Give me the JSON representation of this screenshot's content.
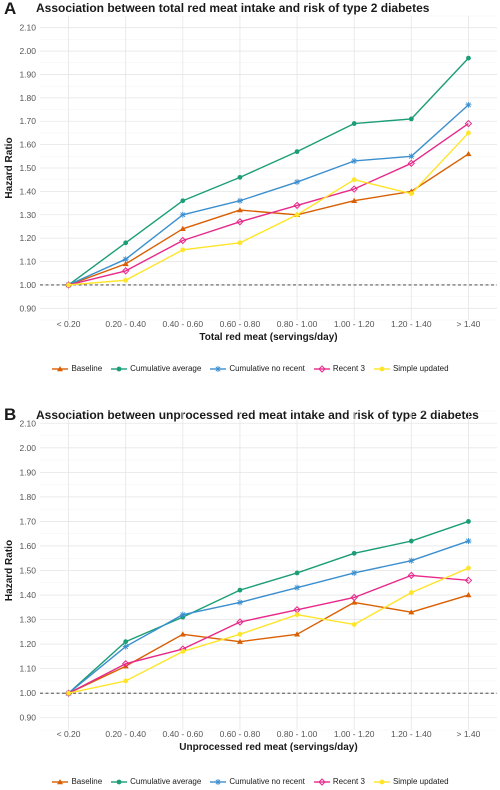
{
  "colors": {
    "Baseline": "#d95f02",
    "Cumulative average": "#1b9e77",
    "Cumulative no recent": "#3b8fcf",
    "Recent 3": "#e7298a",
    "Simple updated": "#ffe52a",
    "reference_line": "#333333",
    "grid": "#ececec"
  },
  "legend": [
    {
      "name": "Baseline",
      "marker": "triangle"
    },
    {
      "name": "Cumulative average",
      "marker": "circle"
    },
    {
      "name": "Cumulative no recent",
      "marker": "star"
    },
    {
      "name": "Recent 3",
      "marker": "diamond"
    },
    {
      "name": "Simple updated",
      "marker": "circle"
    }
  ],
  "chart_data": [
    {
      "panel": "A",
      "type": "line",
      "title": "Association between total red meat intake and risk of type 2 diabetes",
      "xlabel": "Total red meat (servings/day)",
      "ylabel": "Hazard Ratio",
      "categories": [
        "< 0.20",
        "0.20 - 0.40",
        "0.40 - 0.60",
        "0.60 - 0.80",
        "0.80 - 1.00",
        "1.00 - 1.20",
        "1.20 - 1.40",
        "> 1.40"
      ],
      "ylim": [
        0.85,
        2.15
      ],
      "yticks": [
        "0.90",
        "1.00",
        "1.10",
        "1.20",
        "1.30",
        "1.40",
        "1.50",
        "1.60",
        "1.70",
        "1.80",
        "1.90",
        "2.00",
        "2.10"
      ],
      "reference_line": 1.0,
      "grid": true,
      "legend_position": "bottom",
      "series": [
        {
          "name": "Baseline",
          "values": [
            1.0,
            1.09,
            1.24,
            1.32,
            1.3,
            1.36,
            1.4,
            1.56
          ]
        },
        {
          "name": "Cumulative average",
          "values": [
            1.0,
            1.18,
            1.36,
            1.46,
            1.57,
            1.69,
            1.71,
            1.97
          ]
        },
        {
          "name": "Cumulative no recent",
          "values": [
            1.0,
            1.11,
            1.3,
            1.36,
            1.44,
            1.53,
            1.55,
            1.77
          ]
        },
        {
          "name": "Recent 3",
          "values": [
            1.0,
            1.06,
            1.19,
            1.27,
            1.34,
            1.41,
            1.52,
            1.69
          ]
        },
        {
          "name": "Simple updated",
          "values": [
            1.0,
            1.02,
            1.15,
            1.18,
            1.3,
            1.45,
            1.39,
            1.65
          ]
        }
      ]
    },
    {
      "panel": "B",
      "type": "line",
      "title": "Association between unprocessed red meat intake and risk of type 2 diabetes",
      "xlabel": "Unprocessed red meat (servings/day)",
      "ylabel": "Hazard Ratio",
      "categories": [
        "< 0.20",
        "0.20 - 0.40",
        "0.40 - 0.60",
        "0.60 - 0.80",
        "0.80 - 1.00",
        "1.00 - 1.20",
        "1.20 - 1.40",
        "> 1.40"
      ],
      "ylim": [
        0.85,
        2.15
      ],
      "yticks": [
        "0.90",
        "1.00",
        "1.10",
        "1.20",
        "1.30",
        "1.40",
        "1.50",
        "1.60",
        "1.70",
        "1.80",
        "1.90",
        "2.00",
        "2.10"
      ],
      "reference_line": 1.0,
      "grid": true,
      "legend_position": "bottom",
      "series": [
        {
          "name": "Baseline",
          "values": [
            1.0,
            1.11,
            1.24,
            1.21,
            1.24,
            1.37,
            1.33,
            1.4
          ]
        },
        {
          "name": "Cumulative average",
          "values": [
            1.0,
            1.21,
            1.31,
            1.42,
            1.49,
            1.57,
            1.62,
            1.7
          ]
        },
        {
          "name": "Cumulative no recent",
          "values": [
            1.0,
            1.19,
            1.32,
            1.37,
            1.43,
            1.49,
            1.54,
            1.62
          ]
        },
        {
          "name": "Recent 3",
          "values": [
            1.0,
            1.12,
            1.18,
            1.29,
            1.34,
            1.39,
            1.48,
            1.46
          ]
        },
        {
          "name": "Simple updated",
          "values": [
            1.0,
            1.05,
            1.17,
            1.24,
            1.32,
            1.28,
            1.41,
            1.51
          ]
        }
      ]
    }
  ],
  "panels": [
    {
      "letter": "A"
    },
    {
      "letter": "B"
    }
  ]
}
